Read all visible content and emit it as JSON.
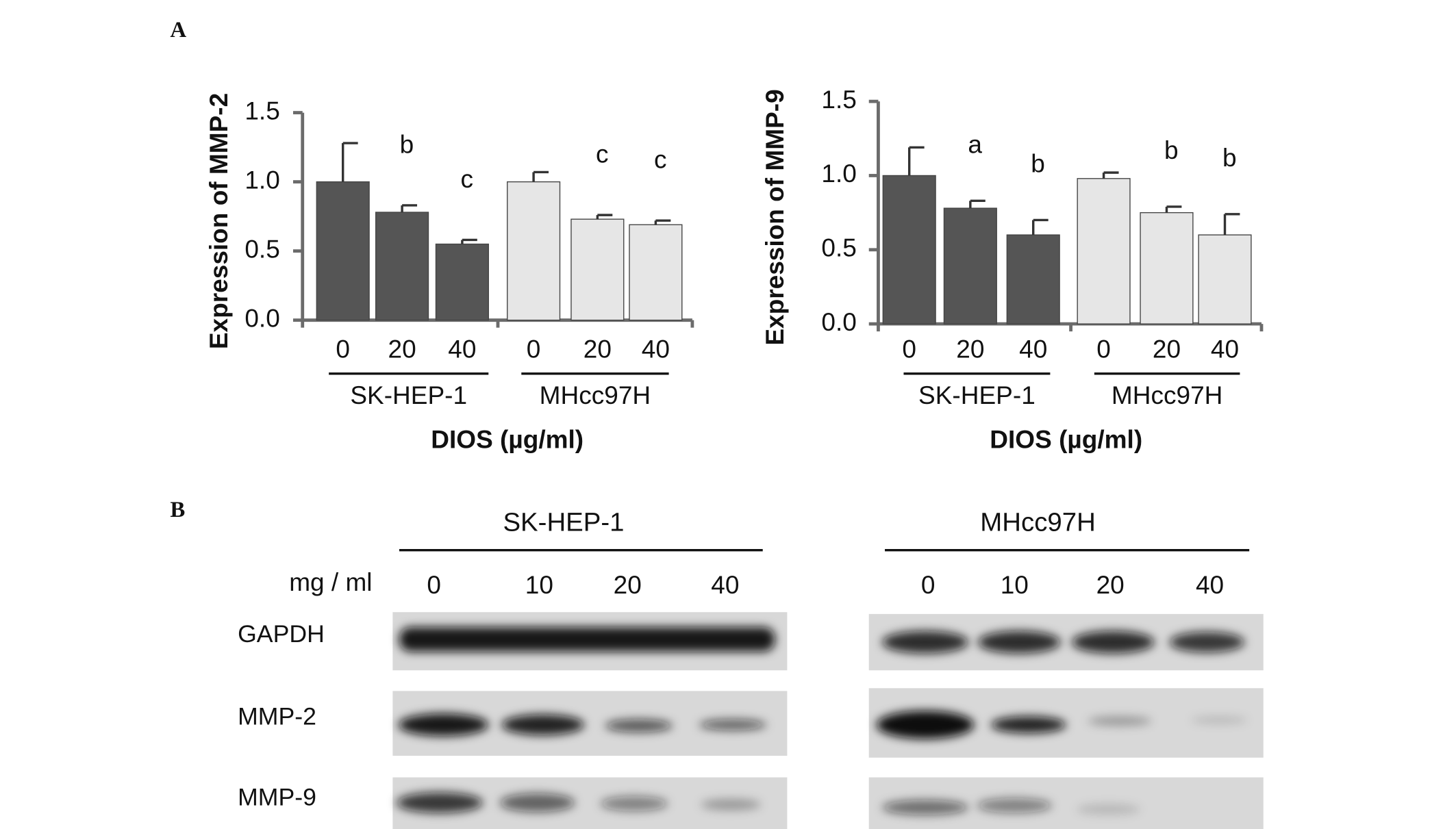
{
  "panels": {
    "a": "A",
    "b": "B"
  },
  "chart_data": [
    {
      "type": "bar",
      "y_label": "Expression of MMP-2",
      "x_label": "DIOS (µg/ml)",
      "ylim": [
        0,
        1.5
      ],
      "yticks": [
        {
          "value": 0,
          "label": "0.0"
        },
        0.5,
        {
          "value": 1,
          "label": "1.0"
        },
        1.5
      ],
      "groups": [
        {
          "name": "SK-HEP-1",
          "color": "#555555",
          "categories": [
            "0",
            "20",
            "40"
          ],
          "values": [
            1.0,
            0.78,
            0.55
          ],
          "errors": [
            0.28,
            0.05,
            0.03
          ],
          "letters": [
            null,
            "b",
            "c"
          ]
        },
        {
          "name": "MHcc97H",
          "color": "#e6e6e6",
          "categories": [
            "0",
            "20",
            "40"
          ],
          "values": [
            1.0,
            0.73,
            0.69
          ],
          "errors": [
            0.07,
            0.03,
            0.03
          ],
          "letters": [
            null,
            "c",
            "c"
          ]
        }
      ]
    },
    {
      "type": "bar",
      "y_label": "Expression of MMP-9",
      "x_label": "DIOS (µg/ml)",
      "ylim": [
        0,
        1.5
      ],
      "yticks": [
        {
          "value": 0,
          "label": "0.0"
        },
        0.5,
        {
          "value": 1,
          "label": "1.0"
        },
        1.5
      ],
      "groups": [
        {
          "name": "SK-HEP-1",
          "color": "#555555",
          "categories": [
            "0",
            "20",
            "40"
          ],
          "values": [
            1.0,
            0.78,
            0.6
          ],
          "errors": [
            0.19,
            0.05,
            0.1
          ],
          "letters": [
            null,
            "a",
            "b"
          ]
        },
        {
          "name": "MHcc97H",
          "color": "#e6e6e6",
          "categories": [
            "0",
            "20",
            "40"
          ],
          "values": [
            0.98,
            0.75,
            0.6
          ],
          "errors": [
            0.04,
            0.04,
            0.14
          ],
          "letters": [
            null,
            "b",
            "b"
          ]
        }
      ]
    }
  ],
  "blot": {
    "cell_lines": [
      "SK-HEP-1",
      "MHcc97H"
    ],
    "dose_label": "mg / ml",
    "lanes": [
      [
        "0",
        "10",
        "20",
        "40"
      ],
      [
        "0",
        "10",
        "20",
        "40"
      ]
    ],
    "proteins": [
      "GAPDH",
      "MMP-2",
      "MMP-9"
    ]
  }
}
